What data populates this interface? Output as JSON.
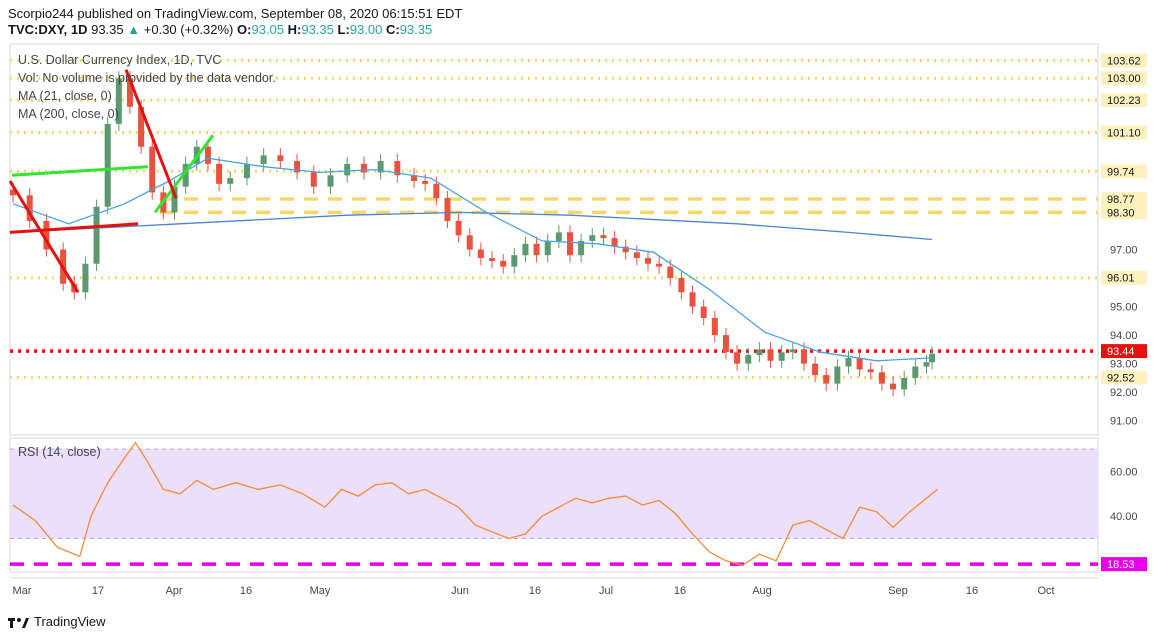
{
  "header": {
    "line1": "Scorpio244 published on TradingView.com, September 08, 2020 06:15:51 EDT",
    "symbol": "TVC:DXY, 1D",
    "last": "93.35",
    "change": "+0.30 (+0.32%)",
    "o": "93.05",
    "h": "93.35",
    "l": "93.00",
    "c": "93.35"
  },
  "legends": {
    "title": "U.S. Dollar Currency Index, 1D, TVC",
    "vol": "Vol: No volume is provided by the data vendor.",
    "ma21": "MA (21, close, 0)",
    "ma200": "MA (200, close, 0)",
    "rsi": "RSI (14, close)"
  },
  "footer": {
    "brand": "TradingView"
  },
  "colors": {
    "up": "#5b9a6e",
    "down": "#e8523f",
    "ma21": "#4aa3df",
    "ma200": "#4a86c8",
    "yellow": "#f5d76e",
    "red": "#e5110e",
    "magenta": "#e800e8",
    "green_trend": "#33e533",
    "rsi_line": "#f28c3a",
    "rsi_band": "#ecdffb"
  },
  "chart_data": [
    {
      "type": "candlestick",
      "title": "U.S. Dollar Currency Index, 1D, TVC",
      "ylim": [
        90.5,
        104.2
      ],
      "price_ticks": [
        91.0,
        92.0,
        93.0,
        94.0,
        95.0,
        97.0
      ],
      "x_ticks": [
        "Mar",
        "17",
        "Apr",
        "16",
        "May",
        "Jun",
        "16",
        "Jul",
        "16",
        "Aug",
        "Sep",
        "16",
        "Oct"
      ],
      "price_levels": [
        {
          "value": 103.62,
          "label": "103.62",
          "style": "yellow-dotted"
        },
        {
          "value": 103.0,
          "label": "103.00",
          "style": "yellow-dotted"
        },
        {
          "value": 102.23,
          "label": "102.23",
          "style": "yellow-dotted"
        },
        {
          "value": 101.1,
          "label": "101.10",
          "style": "yellow-dotted"
        },
        {
          "value": 99.74,
          "label": "99.74",
          "style": "yellow-dotted"
        },
        {
          "value": 98.77,
          "label": "98.77",
          "style": "yellow-dashed"
        },
        {
          "value": 98.3,
          "label": "98.30",
          "style": "yellow-dashed"
        },
        {
          "value": 96.01,
          "label": "96.01",
          "style": "yellow-dotted"
        },
        {
          "value": 93.44,
          "label": "93.44",
          "style": "red-dotted"
        },
        {
          "value": 92.52,
          "label": "92.52",
          "style": "yellow-dotted"
        }
      ],
      "close_path": [
        {
          "x": 0,
          "c": 98.9
        },
        {
          "x": 3,
          "c": 98.0
        },
        {
          "x": 6,
          "c": 97.0
        },
        {
          "x": 9,
          "c": 95.8
        },
        {
          "x": 11,
          "c": 95.5
        },
        {
          "x": 13,
          "c": 96.5
        },
        {
          "x": 15,
          "c": 98.5
        },
        {
          "x": 17,
          "c": 101.4
        },
        {
          "x": 19,
          "c": 103.0
        },
        {
          "x": 21,
          "c": 102.0
        },
        {
          "x": 23,
          "c": 100.6
        },
        {
          "x": 25,
          "c": 99.0
        },
        {
          "x": 27,
          "c": 98.3
        },
        {
          "x": 29,
          "c": 99.2
        },
        {
          "x": 31,
          "c": 100.0
        },
        {
          "x": 33,
          "c": 100.6
        },
        {
          "x": 35,
          "c": 100.0
        },
        {
          "x": 37,
          "c": 99.3
        },
        {
          "x": 39,
          "c": 99.5
        },
        {
          "x": 42,
          "c": 100.0
        },
        {
          "x": 45,
          "c": 100.3
        },
        {
          "x": 48,
          "c": 100.1
        },
        {
          "x": 51,
          "c": 99.7
        },
        {
          "x": 54,
          "c": 99.2
        },
        {
          "x": 57,
          "c": 99.6
        },
        {
          "x": 60,
          "c": 100.0
        },
        {
          "x": 63,
          "c": 99.7
        },
        {
          "x": 66,
          "c": 100.1
        },
        {
          "x": 69,
          "c": 99.6
        },
        {
          "x": 72,
          "c": 99.4
        },
        {
          "x": 74,
          "c": 99.3
        },
        {
          "x": 76,
          "c": 98.8
        },
        {
          "x": 78,
          "c": 98.0
        },
        {
          "x": 80,
          "c": 97.5
        },
        {
          "x": 82,
          "c": 97.0
        },
        {
          "x": 84,
          "c": 96.7
        },
        {
          "x": 86,
          "c": 96.6
        },
        {
          "x": 88,
          "c": 96.4
        },
        {
          "x": 90,
          "c": 96.8
        },
        {
          "x": 92,
          "c": 97.2
        },
        {
          "x": 94,
          "c": 96.8
        },
        {
          "x": 96,
          "c": 97.3
        },
        {
          "x": 98,
          "c": 97.6
        },
        {
          "x": 100,
          "c": 96.8
        },
        {
          "x": 102,
          "c": 97.3
        },
        {
          "x": 104,
          "c": 97.5
        },
        {
          "x": 106,
          "c": 97.4
        },
        {
          "x": 108,
          "c": 97.1
        },
        {
          "x": 110,
          "c": 96.9
        },
        {
          "x": 112,
          "c": 96.7
        },
        {
          "x": 114,
          "c": 96.5
        },
        {
          "x": 116,
          "c": 96.4
        },
        {
          "x": 118,
          "c": 96.0
        },
        {
          "x": 120,
          "c": 95.5
        },
        {
          "x": 122,
          "c": 95.0
        },
        {
          "x": 124,
          "c": 94.6
        },
        {
          "x": 126,
          "c": 94.0
        },
        {
          "x": 128,
          "c": 93.4
        },
        {
          "x": 130,
          "c": 93.0
        },
        {
          "x": 132,
          "c": 93.3
        },
        {
          "x": 134,
          "c": 93.5
        },
        {
          "x": 136,
          "c": 93.1
        },
        {
          "x": 138,
          "c": 93.4
        },
        {
          "x": 140,
          "c": 93.5
        },
        {
          "x": 142,
          "c": 93.0
        },
        {
          "x": 144,
          "c": 92.6
        },
        {
          "x": 146,
          "c": 92.3
        },
        {
          "x": 148,
          "c": 92.9
        },
        {
          "x": 150,
          "c": 93.2
        },
        {
          "x": 152,
          "c": 92.8
        },
        {
          "x": 154,
          "c": 92.7
        },
        {
          "x": 156,
          "c": 92.3
        },
        {
          "x": 158,
          "c": 92.1
        },
        {
          "x": 160,
          "c": 92.5
        },
        {
          "x": 162,
          "c": 92.9
        },
        {
          "x": 164,
          "c": 93.05
        },
        {
          "x": 165,
          "c": 93.35
        }
      ],
      "ma21": [
        {
          "x": 0,
          "v": 98.6
        },
        {
          "x": 10,
          "v": 97.9
        },
        {
          "x": 20,
          "v": 98.6
        },
        {
          "x": 28,
          "v": 99.4
        },
        {
          "x": 35,
          "v": 100.2
        },
        {
          "x": 45,
          "v": 99.9
        },
        {
          "x": 55,
          "v": 99.7
        },
        {
          "x": 65,
          "v": 99.8
        },
        {
          "x": 75,
          "v": 99.5
        },
        {
          "x": 85,
          "v": 98.3
        },
        {
          "x": 95,
          "v": 97.3
        },
        {
          "x": 105,
          "v": 97.2
        },
        {
          "x": 115,
          "v": 96.9
        },
        {
          "x": 125,
          "v": 95.6
        },
        {
          "x": 135,
          "v": 94.1
        },
        {
          "x": 145,
          "v": 93.4
        },
        {
          "x": 155,
          "v": 93.1
        },
        {
          "x": 165,
          "v": 93.2
        }
      ],
      "ma200": [
        {
          "x": 0,
          "v": 97.6
        },
        {
          "x": 30,
          "v": 97.9
        },
        {
          "x": 60,
          "v": 98.2
        },
        {
          "x": 80,
          "v": 98.3
        },
        {
          "x": 100,
          "v": 98.2
        },
        {
          "x": 130,
          "v": 97.9
        },
        {
          "x": 150,
          "v": 97.6
        },
        {
          "x": 165,
          "v": 97.35
        }
      ]
    },
    {
      "type": "line",
      "title": "RSI (14, close)",
      "ylim": [
        15,
        75
      ],
      "ticks": [
        40.0,
        60.0
      ],
      "level": {
        "value": 18.53,
        "label": "18.53"
      },
      "band": [
        30,
        70
      ],
      "values": [
        {
          "x": 0,
          "v": 45
        },
        {
          "x": 4,
          "v": 38
        },
        {
          "x": 8,
          "v": 26
        },
        {
          "x": 12,
          "v": 22
        },
        {
          "x": 14,
          "v": 40
        },
        {
          "x": 17,
          "v": 55
        },
        {
          "x": 20,
          "v": 66
        },
        {
          "x": 22,
          "v": 73
        },
        {
          "x": 24,
          "v": 65
        },
        {
          "x": 27,
          "v": 52
        },
        {
          "x": 30,
          "v": 50
        },
        {
          "x": 33,
          "v": 56
        },
        {
          "x": 36,
          "v": 52
        },
        {
          "x": 40,
          "v": 55
        },
        {
          "x": 44,
          "v": 52
        },
        {
          "x": 48,
          "v": 54
        },
        {
          "x": 52,
          "v": 50
        },
        {
          "x": 56,
          "v": 44
        },
        {
          "x": 59,
          "v": 52
        },
        {
          "x": 62,
          "v": 49
        },
        {
          "x": 65,
          "v": 54
        },
        {
          "x": 68,
          "v": 55
        },
        {
          "x": 71,
          "v": 50
        },
        {
          "x": 74,
          "v": 52
        },
        {
          "x": 77,
          "v": 48
        },
        {
          "x": 80,
          "v": 44
        },
        {
          "x": 83,
          "v": 36
        },
        {
          "x": 86,
          "v": 33
        },
        {
          "x": 89,
          "v": 30
        },
        {
          "x": 92,
          "v": 32
        },
        {
          "x": 95,
          "v": 40
        },
        {
          "x": 98,
          "v": 44
        },
        {
          "x": 101,
          "v": 48
        },
        {
          "x": 104,
          "v": 46
        },
        {
          "x": 107,
          "v": 48
        },
        {
          "x": 110,
          "v": 49
        },
        {
          "x": 113,
          "v": 45
        },
        {
          "x": 116,
          "v": 47
        },
        {
          "x": 119,
          "v": 41
        },
        {
          "x": 122,
          "v": 32
        },
        {
          "x": 125,
          "v": 24
        },
        {
          "x": 128,
          "v": 20
        },
        {
          "x": 131,
          "v": 18
        },
        {
          "x": 134,
          "v": 23
        },
        {
          "x": 137,
          "v": 20
        },
        {
          "x": 140,
          "v": 36
        },
        {
          "x": 143,
          "v": 38
        },
        {
          "x": 146,
          "v": 34
        },
        {
          "x": 149,
          "v": 30
        },
        {
          "x": 152,
          "v": 44
        },
        {
          "x": 155,
          "v": 42
        },
        {
          "x": 158,
          "v": 35
        },
        {
          "x": 161,
          "v": 42
        },
        {
          "x": 164,
          "v": 48
        },
        {
          "x": 166,
          "v": 52
        }
      ]
    }
  ]
}
